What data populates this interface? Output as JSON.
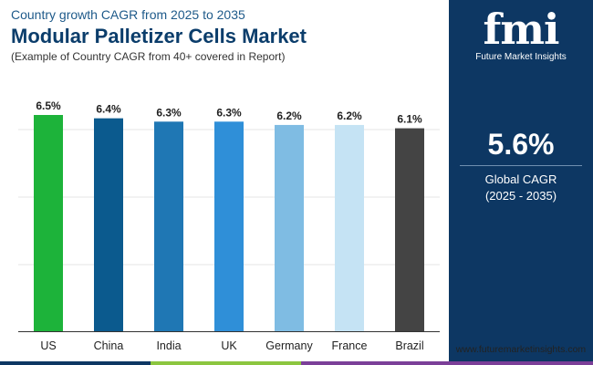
{
  "header": {
    "subtitle": "Country growth CAGR from 2025 to 2035",
    "title": "Modular Palletizer Cells Market",
    "note": "(Example of Country CAGR from 40+ covered in Report)"
  },
  "chart_data": {
    "type": "bar",
    "categories": [
      "US",
      "China",
      "India",
      "UK",
      "Germany",
      "France",
      "Brazil"
    ],
    "values": [
      6.5,
      6.4,
      6.3,
      6.3,
      6.2,
      6.2,
      6.1
    ],
    "data_labels": [
      "6.5%",
      "6.4%",
      "6.3%",
      "6.3%",
      "6.2%",
      "6.2%",
      "6.1%"
    ],
    "colors": [
      "#1db33a",
      "#0b5a8e",
      "#1f77b4",
      "#2f8fd8",
      "#7fbce3",
      "#c5e3f4",
      "#444444"
    ],
    "ylim": [
      0,
      6.5
    ],
    "y_axis_visible": false,
    "grid": true,
    "xlabel": "",
    "ylabel": ""
  },
  "sidebar": {
    "logo_mark": "fmi",
    "logo_text": "Future Market Insights",
    "global_value": "5.6%",
    "global_label": "Global CAGR",
    "global_period": "(2025 - 2035)"
  },
  "footer": {
    "website": "www.futuremarketinsights.com",
    "stripe_colors": [
      "#0d3763",
      "#8cc63f",
      "#7b3f98"
    ]
  }
}
